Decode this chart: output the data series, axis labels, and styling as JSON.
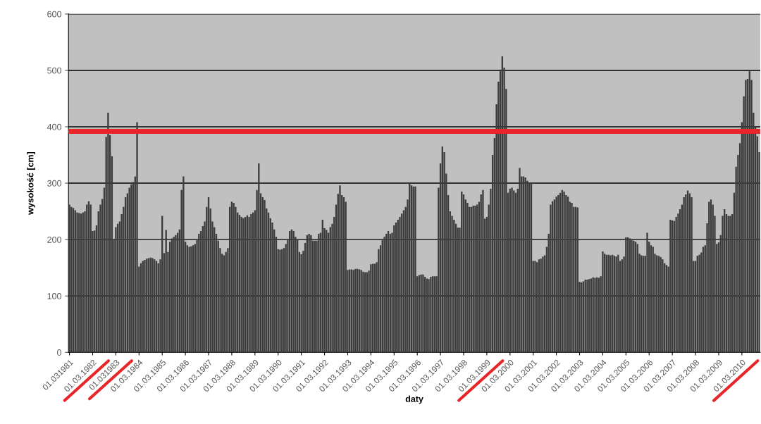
{
  "chart_data": {
    "type": "bar",
    "xlabel": "daty",
    "ylabel": "wysokość [cm]",
    "categories": [
      "01.031981",
      null,
      null,
      null,
      null,
      null,
      null,
      null,
      null,
      null,
      null,
      null,
      "01.03.1982",
      null,
      null,
      null,
      null,
      null,
      null,
      null,
      null,
      null,
      null,
      null,
      "01.031983",
      null,
      null,
      null,
      null,
      null,
      null,
      null,
      null,
      null,
      null,
      null,
      "01.03.1984",
      null,
      null,
      null,
      null,
      null,
      null,
      null,
      null,
      null,
      null,
      null,
      "01.03.1985",
      null,
      null,
      null,
      null,
      null,
      null,
      null,
      null,
      null,
      null,
      null,
      "01.03.1986",
      null,
      null,
      null,
      null,
      null,
      null,
      null,
      null,
      null,
      null,
      null,
      "01.03.1987",
      null,
      null,
      null,
      null,
      null,
      null,
      null,
      null,
      null,
      null,
      null,
      "01.03.1988",
      null,
      null,
      null,
      null,
      null,
      null,
      null,
      null,
      null,
      null,
      null,
      "01.03.1989",
      null,
      null,
      null,
      null,
      null,
      null,
      null,
      null,
      null,
      null,
      null,
      "01.03.1990",
      null,
      null,
      null,
      null,
      null,
      null,
      null,
      null,
      null,
      null,
      null,
      "01.03.1991",
      null,
      null,
      null,
      null,
      null,
      null,
      null,
      null,
      null,
      null,
      null,
      "01.03.1992",
      null,
      null,
      null,
      null,
      null,
      null,
      null,
      null,
      null,
      null,
      null,
      "01.03.1993",
      null,
      null,
      null,
      null,
      null,
      null,
      null,
      null,
      null,
      null,
      null,
      "01.03.1994",
      null,
      null,
      null,
      null,
      null,
      null,
      null,
      null,
      null,
      null,
      null,
      "01.03.1995",
      null,
      null,
      null,
      null,
      null,
      null,
      null,
      null,
      null,
      null,
      null,
      "01.03.1996",
      null,
      null,
      null,
      null,
      null,
      null,
      null,
      null,
      null,
      null,
      null,
      "01.03.1997",
      null,
      null,
      null,
      null,
      null,
      null,
      null,
      null,
      null,
      null,
      null,
      "01.03.1998",
      null,
      null,
      null,
      null,
      null,
      null,
      null,
      null,
      null,
      null,
      null,
      "01.03.1999",
      null,
      null,
      null,
      null,
      null,
      null,
      null,
      null,
      null,
      null,
      null,
      "01.03.2000",
      null,
      null,
      null,
      null,
      null,
      null,
      null,
      null,
      null,
      null,
      null,
      "01.03.2001",
      null,
      null,
      null,
      null,
      null,
      null,
      null,
      null,
      null,
      null,
      null,
      "01.03.2002",
      null,
      null,
      null,
      null,
      null,
      null,
      null,
      null,
      null,
      null,
      null,
      "01.03.2003",
      null,
      null,
      null,
      null,
      null,
      null,
      null,
      null,
      null,
      null,
      null,
      "01.03.2004",
      null,
      null,
      null,
      null,
      null,
      null,
      null,
      null,
      null,
      null,
      null,
      "01.03.2005",
      null,
      null,
      null,
      null,
      null,
      null,
      null,
      null,
      null,
      null,
      null,
      "01.03.2006",
      null,
      null,
      null,
      null,
      null,
      null,
      null,
      null,
      null,
      null,
      null,
      "01.03.2007",
      null,
      null,
      null,
      null,
      null,
      null,
      null,
      null,
      null,
      null,
      null,
      "01.03.2008",
      null,
      null,
      null,
      null,
      null,
      null,
      null,
      null,
      null,
      null,
      null,
      "01.03.2009",
      null,
      null,
      null,
      null,
      null,
      null,
      null,
      null,
      null,
      null,
      null,
      "01.03.2010",
      null,
      null,
      null,
      null,
      null,
      null,
      null,
      null,
      null
    ],
    "values": [
      262,
      258,
      256,
      252,
      248,
      247,
      246,
      248,
      250,
      262,
      268,
      262,
      215,
      216,
      225,
      250,
      262,
      272,
      292,
      382,
      425,
      385,
      348,
      200,
      222,
      228,
      232,
      245,
      258,
      275,
      282,
      292,
      298,
      302,
      312,
      408,
      152,
      158,
      162,
      164,
      166,
      167,
      168,
      167,
      165,
      162,
      158,
      165,
      242,
      176,
      217,
      178,
      196,
      202,
      205,
      208,
      212,
      218,
      288,
      312,
      196,
      190,
      187,
      188,
      190,
      192,
      200,
      210,
      215,
      224,
      232,
      258,
      275,
      255,
      232,
      222,
      210,
      198,
      185,
      175,
      172,
      178,
      185,
      258,
      267,
      265,
      258,
      248,
      244,
      240,
      238,
      240,
      243,
      240,
      245,
      248,
      252,
      288,
      335,
      282,
      275,
      270,
      255,
      248,
      238,
      230,
      218,
      205,
      183,
      182,
      183,
      185,
      192,
      200,
      215,
      218,
      215,
      205,
      200,
      178,
      174,
      180,
      194,
      208,
      210,
      208,
      198,
      198,
      198,
      210,
      212,
      235,
      220,
      217,
      212,
      222,
      228,
      240,
      262,
      281,
      296,
      279,
      275,
      267,
      146,
      147,
      147,
      146,
      148,
      148,
      147,
      146,
      143,
      142,
      142,
      145,
      156,
      157,
      157,
      160,
      183,
      190,
      200,
      205,
      210,
      215,
      210,
      212,
      225,
      230,
      235,
      240,
      246,
      252,
      258,
      271,
      300,
      296,
      294,
      294,
      135,
      137,
      138,
      138,
      134,
      131,
      130,
      134,
      135,
      135,
      135,
      292,
      335,
      365,
      355,
      317,
      279,
      250,
      242,
      235,
      228,
      221,
      221,
      285,
      280,
      271,
      265,
      258,
      258,
      260,
      260,
      262,
      267,
      280,
      288,
      237,
      240,
      262,
      290,
      350,
      380,
      440,
      480,
      500,
      525,
      505,
      467,
      283,
      290,
      292,
      287,
      283,
      290,
      327,
      312,
      312,
      310,
      304,
      300,
      300,
      162,
      162,
      160,
      165,
      166,
      170,
      172,
      187,
      210,
      262,
      268,
      271,
      276,
      279,
      283,
      288,
      285,
      279,
      276,
      267,
      265,
      258,
      258,
      257,
      125,
      124,
      126,
      129,
      129,
      130,
      131,
      133,
      132,
      133,
      132,
      135,
      179,
      175,
      173,
      173,
      172,
      173,
      171,
      170,
      173,
      162,
      165,
      170,
      204,
      204,
      202,
      200,
      198,
      196,
      192,
      175,
      172,
      171,
      171,
      212,
      196,
      190,
      187,
      175,
      172,
      171,
      169,
      165,
      158,
      155,
      152,
      235,
      234,
      233,
      240,
      246,
      254,
      262,
      275,
      280,
      287,
      282,
      275,
      162,
      162,
      171,
      173,
      177,
      187,
      190,
      229,
      267,
      271,
      262,
      242,
      192,
      195,
      208,
      242,
      254,
      245,
      242,
      242,
      245,
      283,
      329,
      350,
      371,
      408,
      454,
      483,
      485,
      500,
      483,
      425,
      400,
      383,
      355
    ],
    "color": "#3c3c3c",
    "ylim": [
      0,
      600
    ],
    "yticks": [
      0,
      100,
      200,
      300,
      400,
      500,
      600
    ],
    "grid": "y",
    "ref_lines": [
      {
        "axis": "y",
        "value": 392,
        "color": "#e8262a"
      }
    ]
  }
}
